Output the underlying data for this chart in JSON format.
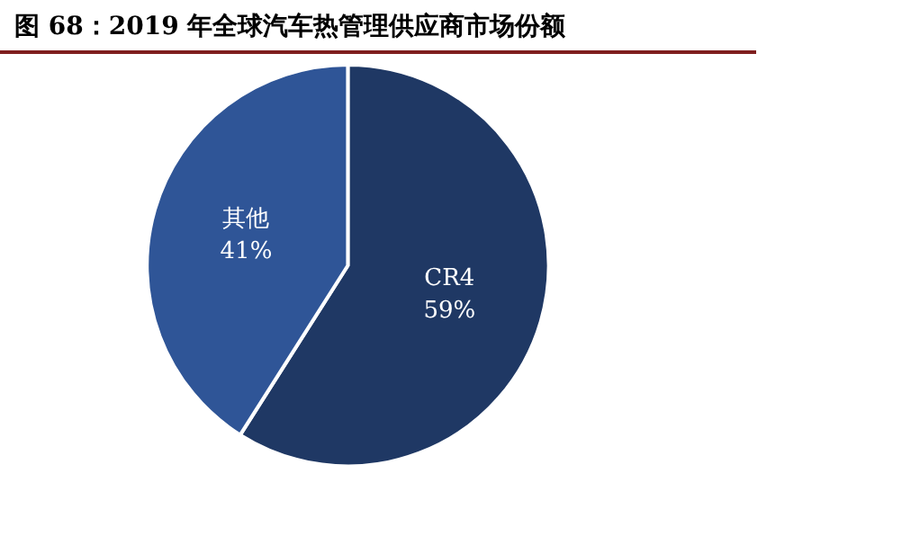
{
  "chart_data": {
    "type": "pie",
    "title": "图 68：2019 年全球汽车热管理供应商市场份额",
    "categories": [
      "CR4",
      "其他"
    ],
    "values": [
      59,
      41
    ],
    "colors": [
      "#1f3864",
      "#2f5597"
    ],
    "value_labels": [
      "59%",
      "41%"
    ],
    "legend": false
  }
}
